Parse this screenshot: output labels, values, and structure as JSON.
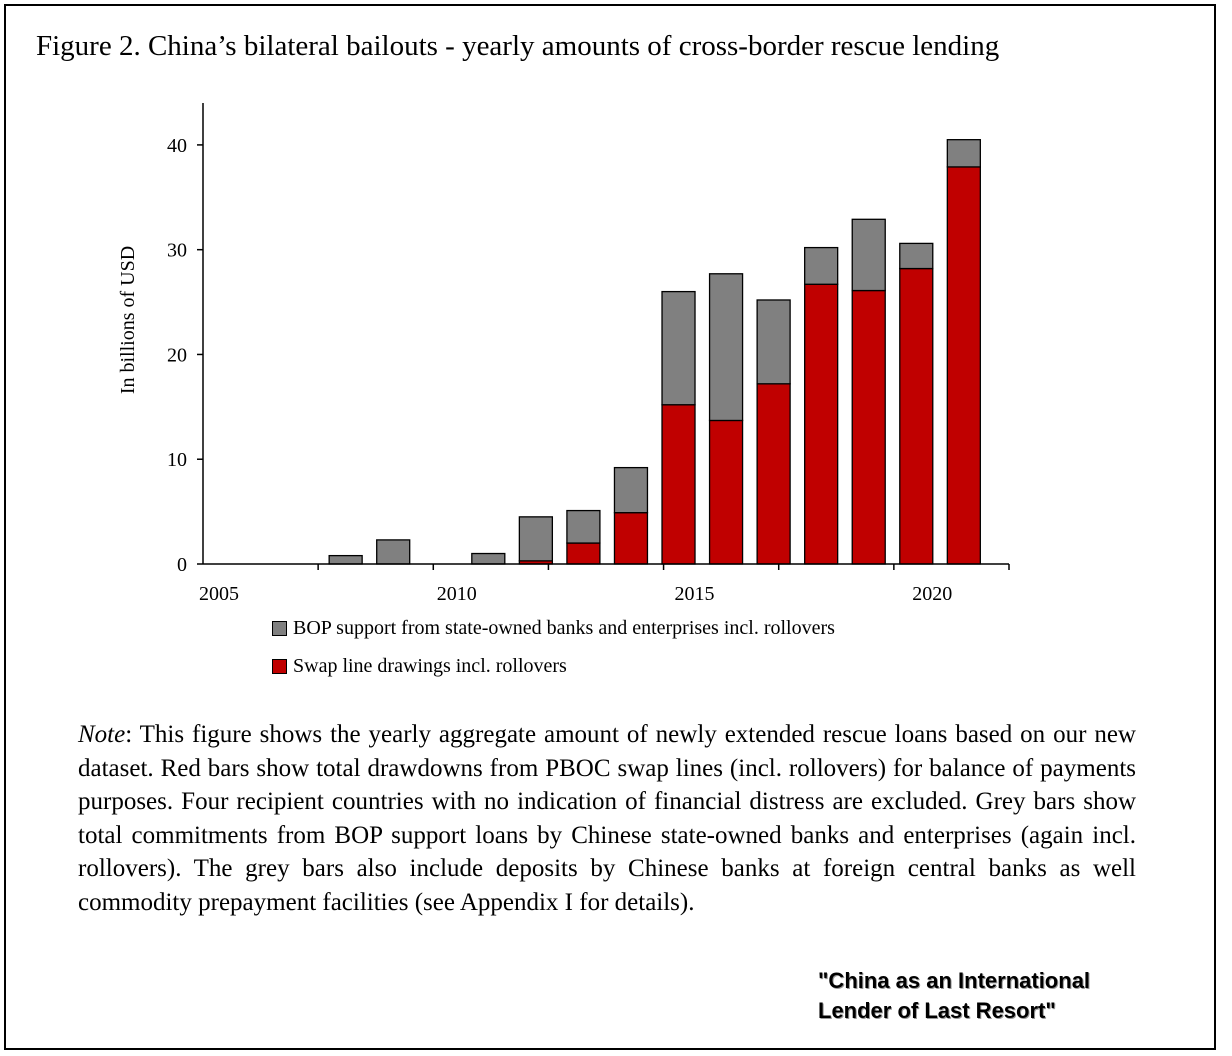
{
  "figure": {
    "title": "Figure 2. China’s bilateral bailouts - yearly amounts of cross-border rescue lending"
  },
  "chart_data": {
    "type": "bar",
    "stacked": true,
    "ylabel": "In billions of USD",
    "xlabel": "",
    "ylim": [
      0,
      44
    ],
    "yticks": [
      0,
      10,
      20,
      30,
      40
    ],
    "xticks": [
      2005,
      2010,
      2015,
      2020
    ],
    "xlim": [
      2005,
      2021.95
    ],
    "categories": [
      2008,
      2009,
      2011,
      2012,
      2013,
      2014,
      2015,
      2016,
      2017,
      2018,
      2019,
      2020,
      2021
    ],
    "series": [
      {
        "name": "Swap line drawings incl. rollovers",
        "color": "#c00000",
        "values": [
          0,
          0,
          0,
          0.3,
          2.0,
          4.9,
          15.2,
          13.7,
          17.2,
          26.7,
          26.1,
          28.2,
          37.9
        ]
      },
      {
        "name": "BOP support from state-owned banks and enterprises incl. rollovers",
        "color": "#808080",
        "values": [
          0.8,
          2.3,
          1.0,
          4.2,
          3.1,
          4.3,
          10.8,
          14.0,
          8.0,
          3.5,
          6.8,
          2.4,
          2.6
        ]
      }
    ]
  },
  "legend": {
    "grey_label": "BOP support from state-owned banks and enterprises incl. rollovers",
    "red_label": "Swap line drawings incl. rollovers",
    "grey_color": "#808080",
    "red_color": "#c00000"
  },
  "note": {
    "label": "Note",
    "text": ": This figure shows the yearly aggregate amount of newly extended rescue loans based on our new dataset. Red bars show total drawdowns from PBOC swap lines (incl. rollovers) for balance of payments purposes. Four recipient countries with no indication of financial distress are excluded. Grey bars show total commitments from BOP support loans by Chinese state-owned banks and enterprises (again incl. rollovers). The grey bars also include deposits by Chinese banks at foreign central banks as well commodity prepayment facilities (see Appendix I for details)."
  },
  "source": {
    "line1": "\"China as an International",
    "line2": "Lender of Last Resort\""
  }
}
